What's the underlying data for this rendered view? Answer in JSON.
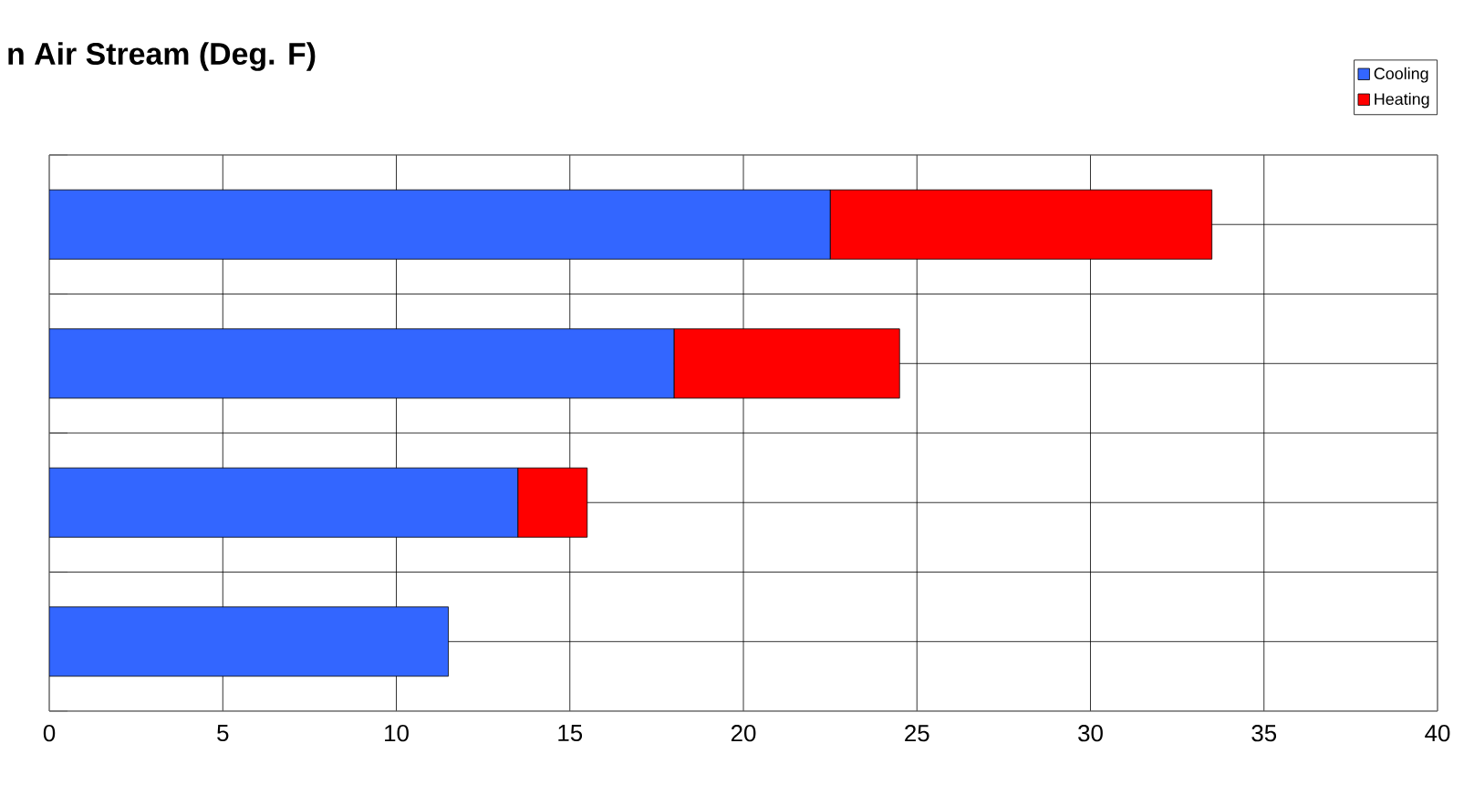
{
  "chart_data": {
    "type": "bar",
    "orientation": "horizontal",
    "stacked": true,
    "title": "n Air Stream (Deg. F)",
    "categories": [
      null,
      null,
      null,
      null
    ],
    "series": [
      {
        "name": "Cooling",
        "color": "#3366ff",
        "values": [
          22.5,
          18,
          13.5,
          11.5
        ]
      },
      {
        "name": "Heating",
        "color": "#ff0000",
        "values": [
          11,
          6.5,
          2,
          0
        ]
      }
    ],
    "xlim": [
      0,
      40
    ],
    "xticks": [
      0,
      5,
      10,
      15,
      20,
      25,
      30,
      35,
      40
    ],
    "grid": true,
    "legend": "top right",
    "tick_labels": "x"
  }
}
